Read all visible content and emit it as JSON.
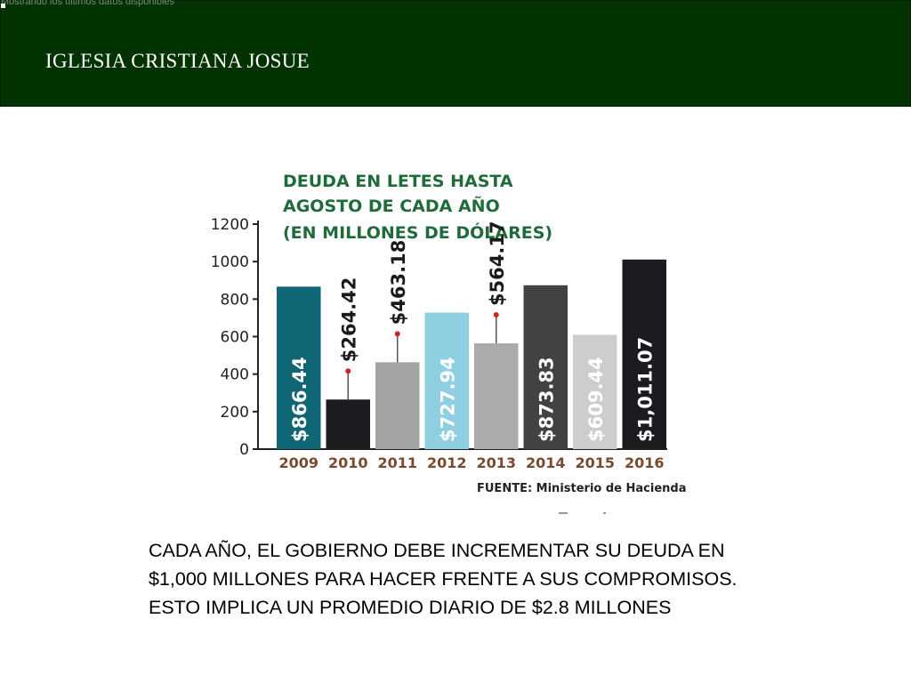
{
  "header": {
    "tiny_text": "Mostrando los últimos datos disponibles",
    "title": "IGLESIA CRISTIANA JOSUE"
  },
  "chart_data": {
    "type": "bar",
    "title_lines": [
      "DEUDA EN LETES HASTA",
      "AGOSTO DE CADA AÑO",
      "(EN MILLONES DE DÓLARES)"
    ],
    "categories": [
      "2009",
      "2010",
      "2011",
      "2012",
      "2013",
      "2014",
      "2015",
      "2016"
    ],
    "values": [
      866.44,
      264.42,
      463.18,
      727.94,
      564.17,
      873.83,
      609.44,
      1011.07
    ],
    "value_labels": [
      "$866.44",
      "$264.42",
      "$463.18",
      "$727.94",
      "$564.17",
      "$873.83",
      "$609.44",
      "$1,011.07"
    ],
    "bar_colors": [
      "#0f6675",
      "#1c1b20",
      "#a3a3a3",
      "#8ed0e2",
      "#ababab",
      "#424244",
      "#cdcdcd",
      "#1c1b20"
    ],
    "ylim": [
      0,
      1200
    ],
    "yticks": [
      "0",
      "200",
      "400",
      "600",
      "800",
      "1000",
      "1200"
    ],
    "source": "FUENTE: Ministerio de Hacienda",
    "category_color": "#7a4a30",
    "title_color": "#1f6b3a"
  },
  "body": {
    "lines": [
      "CADA AÑO, EL GOBIERNO DEBE INCREMENTAR SU DEUDA EN",
      "$1,000 MILLONES PARA HACER FRENTE A SUS COMPROMISOS.",
      "ESTO IMPLICA UN PROMEDIO DIARIO DE $2.8 MILLONES"
    ]
  }
}
